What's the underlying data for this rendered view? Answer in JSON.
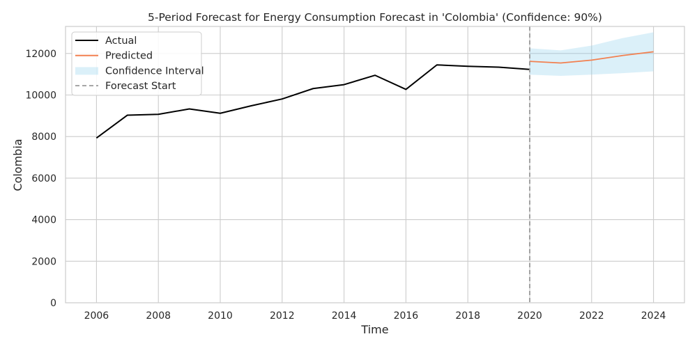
{
  "chart_data": {
    "type": "line",
    "title": "5-Period Forecast for Energy Consumption Forecast in 'Colombia' (Confidence: 90%)",
    "xlabel": "Time",
    "ylabel": "Colombia",
    "xlim": [
      2005,
      2025
    ],
    "ylim": [
      0,
      13300
    ],
    "x_ticks": [
      2006,
      2008,
      2010,
      2012,
      2014,
      2016,
      2018,
      2020,
      2022,
      2024
    ],
    "y_ticks": [
      0,
      2000,
      4000,
      6000,
      8000,
      10000,
      12000
    ],
    "grid": true,
    "legend_position": "upper-left",
    "forecast_start": 2020,
    "series": [
      {
        "name": "Actual",
        "color": "#000000",
        "x": [
          2006,
          2007,
          2008,
          2009,
          2010,
          2011,
          2012,
          2013,
          2014,
          2015,
          2016,
          2017,
          2018,
          2019,
          2020
        ],
        "y": [
          7930,
          9030,
          9070,
          9330,
          9120,
          9480,
          9810,
          10310,
          10500,
          10950,
          10270,
          11450,
          11380,
          11340,
          11230
        ]
      },
      {
        "name": "Predicted",
        "color": "#f28050",
        "x": [
          2020,
          2021,
          2022,
          2023,
          2024
        ],
        "y": [
          11620,
          11540,
          11680,
          11900,
          12080
        ]
      }
    ],
    "confidence_interval": {
      "name": "Confidence Interval",
      "color": "#87ceeb",
      "x": [
        2020,
        2021,
        2022,
        2023,
        2024
      ],
      "lower": [
        10980,
        10920,
        10980,
        11050,
        11140
      ],
      "upper": [
        12250,
        12150,
        12380,
        12740,
        13020
      ]
    },
    "legend": [
      {
        "label": "Actual",
        "kind": "line",
        "color": "#000000"
      },
      {
        "label": "Predicted",
        "kind": "line",
        "color": "#f28050"
      },
      {
        "label": "Confidence Interval",
        "kind": "patch",
        "color": "#87ceeb"
      },
      {
        "label": "Forecast Start",
        "kind": "dashed",
        "color": "#999999"
      }
    ]
  }
}
